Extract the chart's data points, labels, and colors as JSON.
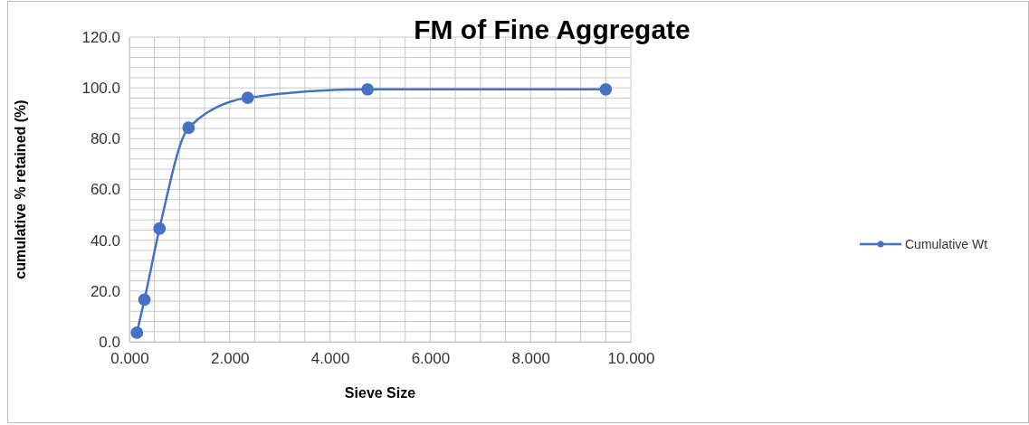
{
  "chart_data": {
    "type": "line",
    "title": "FM of Fine Aggregate",
    "xlabel": "Sieve Size",
    "ylabel": "cumulative % retained (%)",
    "x": [
      0.15,
      0.3,
      0.6,
      1.18,
      2.36,
      4.75,
      9.5
    ],
    "series": [
      {
        "name": "Cumulative Wt",
        "color": "#4472c4",
        "values": [
          3.6,
          16.6,
          44.6,
          84.3,
          96.1,
          99.4,
          99.4
        ]
      }
    ],
    "xlim": [
      0,
      10
    ],
    "xticks": [
      {
        "value": 0,
        "label": "0.000"
      },
      {
        "value": 0.5,
        "label": null
      },
      {
        "value": 1,
        "label": null
      },
      {
        "value": 1.5,
        "label": null
      },
      {
        "value": 2,
        "label": "2.000"
      },
      {
        "value": 2.5,
        "label": null
      },
      {
        "value": 3,
        "label": null
      },
      {
        "value": 3.5,
        "label": null
      },
      {
        "value": 4,
        "label": "4.000"
      },
      {
        "value": 4.5,
        "label": null
      },
      {
        "value": 5,
        "label": null
      },
      {
        "value": 5.5,
        "label": null
      },
      {
        "value": 6,
        "label": "6.000"
      },
      {
        "value": 6.5,
        "label": null
      },
      {
        "value": 7,
        "label": null
      },
      {
        "value": 7.5,
        "label": null
      },
      {
        "value": 8,
        "label": "8.000"
      },
      {
        "value": 8.5,
        "label": null
      },
      {
        "value": 9,
        "label": null
      },
      {
        "value": 9.5,
        "label": null
      },
      {
        "value": 10,
        "label": "10.000"
      }
    ],
    "ylim": [
      0,
      120
    ],
    "yticks": [
      {
        "value": 0,
        "label": "0.0"
      },
      {
        "value": 4,
        "label": null
      },
      {
        "value": 8,
        "label": null
      },
      {
        "value": 12,
        "label": null
      },
      {
        "value": 16,
        "label": null
      },
      {
        "value": 20,
        "label": "20.0"
      },
      {
        "value": 24,
        "label": null
      },
      {
        "value": 28,
        "label": null
      },
      {
        "value": 32,
        "label": null
      },
      {
        "value": 36,
        "label": null
      },
      {
        "value": 40,
        "label": "40.0"
      },
      {
        "value": 44,
        "label": null
      },
      {
        "value": 48,
        "label": null
      },
      {
        "value": 52,
        "label": null
      },
      {
        "value": 56,
        "label": null
      },
      {
        "value": 60,
        "label": "60.0"
      },
      {
        "value": 64,
        "label": null
      },
      {
        "value": 68,
        "label": null
      },
      {
        "value": 72,
        "label": null
      },
      {
        "value": 76,
        "label": null
      },
      {
        "value": 80,
        "label": "80.0"
      },
      {
        "value": 84,
        "label": null
      },
      {
        "value": 88,
        "label": null
      },
      {
        "value": 92,
        "label": null
      },
      {
        "value": 96,
        "label": null
      },
      {
        "value": 100,
        "label": "100.0"
      },
      {
        "value": 104,
        "label": null
      },
      {
        "value": 108,
        "label": null
      },
      {
        "value": 112,
        "label": null
      },
      {
        "value": 116,
        "label": null
      },
      {
        "value": 120,
        "label": "120.0"
      }
    ],
    "grid": true,
    "legend": "right",
    "marker": "circle",
    "line_style": "solid"
  }
}
